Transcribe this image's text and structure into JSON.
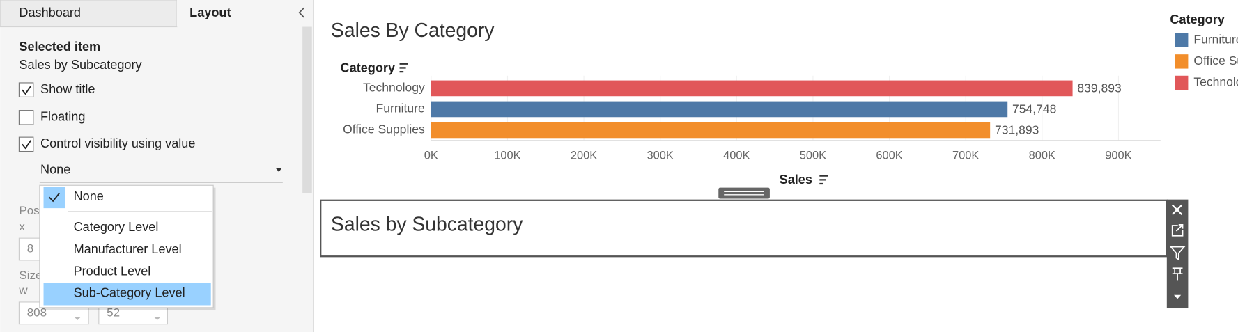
{
  "sidebar": {
    "tabs": [
      "Dashboard",
      "Layout"
    ],
    "section_title": "Selected item",
    "selected_item": "Sales by Subcategory",
    "options": [
      {
        "label": "Show title",
        "checked": true
      },
      {
        "label": "Floating",
        "checked": false
      },
      {
        "label": "Control visibility using value",
        "checked": true
      }
    ],
    "dropdown_value": "None",
    "position_label": "Position",
    "x_label": "x",
    "x_value": "8",
    "size_label": "Size",
    "w_label": "w",
    "w_value": "808",
    "h_value": "52"
  },
  "menu": {
    "items": [
      "None",
      "Category Level",
      "Manufacturer Level",
      "Product Level",
      "Sub-Category Level"
    ]
  },
  "chart_data": {
    "type": "bar",
    "orientation": "horizontal",
    "title": "Sales By Category",
    "y_label": "Category",
    "x_label": "Sales",
    "categories": [
      "Technology",
      "Furniture",
      "Office Supplies"
    ],
    "values": [
      839893,
      754748,
      731893
    ],
    "value_labels": [
      "839,893",
      "754,748",
      "731,893"
    ],
    "colors": [
      "#e15759",
      "#4e79a7",
      "#f28e2b"
    ],
    "xlim": [
      0,
      955000
    ],
    "xticks": [
      {
        "value": 0,
        "label": "0K"
      },
      {
        "value": 100000,
        "label": "100K"
      },
      {
        "value": 200000,
        "label": "200K"
      },
      {
        "value": 300000,
        "label": "300K"
      },
      {
        "value": 400000,
        "label": "400K"
      },
      {
        "value": 500000,
        "label": "500K"
      },
      {
        "value": 600000,
        "label": "600K"
      },
      {
        "value": 700000,
        "label": "700K"
      },
      {
        "value": 800000,
        "label": "800K"
      },
      {
        "value": 900000,
        "label": "900K"
      }
    ],
    "grid": true
  },
  "legend": {
    "title": "Category",
    "entries": [
      {
        "name": "Furniture",
        "color": "#4e79a7"
      },
      {
        "name": "Office Supplies",
        "color": "#f28e2b"
      },
      {
        "name": "Technology",
        "color": "#e15759"
      }
    ]
  },
  "subchart": {
    "title": "Sales by Subcategory"
  }
}
